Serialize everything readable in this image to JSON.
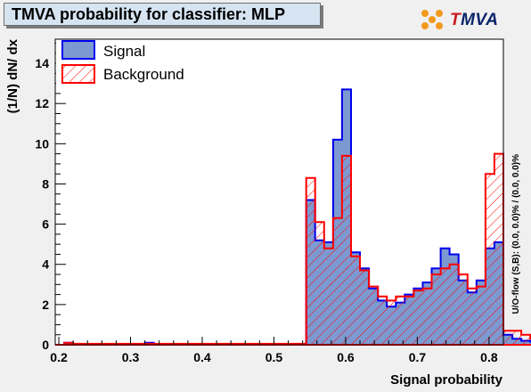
{
  "title": "TMVA probability for classifier: MLP",
  "logo": {
    "t": "T",
    "rest": "MVA",
    "icon": "tmva-logo-icon"
  },
  "overflow_note": "U/O-flow (S,B): (0.0, 0.0)% / (0.0, 0.0)%",
  "colors": {
    "signal_fill": "#7d99d1",
    "signal_line": "#0000ee",
    "background_line": "#ff0000",
    "frame_bg": "#ffffff",
    "page_bg": "#f0f0f0"
  },
  "chart_data": {
    "type": "bar",
    "xlabel": "Signal probability",
    "ylabel": "(1/N) dN/ dx",
    "xlim": [
      0.195,
      0.82
    ],
    "ylim": [
      0,
      15.2
    ],
    "xticks": [
      "0.2",
      "0.3",
      "0.4",
      "0.5",
      "0.6",
      "0.7",
      "0.8"
    ],
    "yticks": [
      "0",
      "2",
      "4",
      "6",
      "8",
      "10",
      "12",
      "14"
    ],
    "grid": false,
    "legend_position": "top-left",
    "bin_edges_start": 0.195,
    "bin_width": 0.0125,
    "series": [
      {
        "name": "Signal",
        "style": "filled",
        "values": [
          0.0,
          0.1,
          0.0,
          0.0,
          0.0,
          0.0,
          0.0,
          0.0,
          0.0,
          0.0,
          0.1,
          0.0,
          0.0,
          0.0,
          0.0,
          0.0,
          0.0,
          0.0,
          0.0,
          0.0,
          0.0,
          0.0,
          0.0,
          0.0,
          0.0,
          0.0,
          0.0,
          0.0,
          7.2,
          5.2,
          5.1,
          10.2,
          12.7,
          4.6,
          3.8,
          2.8,
          2.2,
          1.9,
          2.1,
          2.5,
          2.8,
          3.1,
          3.8,
          4.8,
          4.5,
          3.2,
          2.6,
          3.2,
          4.8,
          5.1,
          0.5,
          0.3,
          0.2,
          0.15,
          0.1,
          0.1,
          0.05,
          0.05,
          0.05,
          0.05,
          0.05,
          0.05,
          0.05,
          0.05,
          0.05,
          0.05,
          0.05,
          0.05,
          0.05,
          0.1
        ]
      },
      {
        "name": "Background",
        "style": "hatched",
        "values": [
          0.0,
          0.1,
          0.05,
          0.05,
          0.05,
          0.05,
          0.05,
          0.05,
          0.05,
          0.05,
          0.05,
          0.05,
          0.05,
          0.05,
          0.05,
          0.05,
          0.05,
          0.05,
          0.05,
          0.05,
          0.05,
          0.05,
          0.05,
          0.05,
          0.05,
          0.05,
          0.05,
          0.05,
          8.3,
          6.1,
          4.8,
          6.3,
          9.4,
          4.4,
          3.7,
          2.9,
          2.4,
          2.2,
          2.4,
          2.4,
          2.7,
          2.8,
          3.5,
          3.8,
          4.0,
          3.5,
          2.8,
          2.9,
          8.5,
          9.5,
          0.7,
          0.7,
          0.5,
          0.3,
          0.3,
          0.2,
          0.15,
          0.1,
          0.1,
          0.1,
          0.1,
          0.1,
          0.1,
          0.1,
          0.1,
          0.1,
          0.1,
          0.1,
          0.1,
          0.1
        ]
      }
    ]
  }
}
